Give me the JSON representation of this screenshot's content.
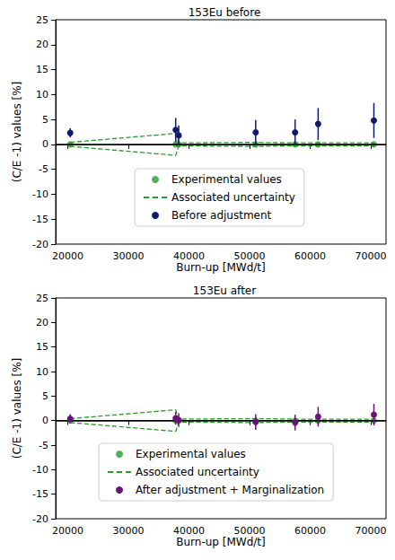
{
  "chart_data": [
    {
      "type": "scatter",
      "title": "153Eu before",
      "x_label": "Burn-up [MWd/t]",
      "y_label": "(C/E -1) values [%]",
      "x": [
        20400,
        37800,
        38300,
        51000,
        57500,
        61300,
        70500
      ],
      "xlim": [
        18000,
        72500
      ],
      "xticks": [
        20000,
        30000,
        40000,
        50000,
        60000,
        70000
      ],
      "ylim": [
        -20,
        25
      ],
      "yticks": [
        -20,
        -15,
        -10,
        -5,
        0,
        5,
        10,
        15,
        20,
        25
      ],
      "hline": 0,
      "grid": false,
      "series": [
        {
          "name": "Experimental values",
          "type": "scatter",
          "marker": "circle",
          "color": "#2a9a2a",
          "values": [
            0,
            0,
            0,
            0,
            0,
            0,
            0
          ]
        },
        {
          "name": "Associated uncertainty",
          "type": "line",
          "line_style": "dashed",
          "color": "#2a9a2a",
          "values": [
            0,
            0,
            0,
            0,
            0,
            0,
            0
          ],
          "errors": [
            0.4,
            2.2,
            0.3,
            0.4,
            0.3,
            0.3,
            0.3
          ]
        },
        {
          "name": "Before adjustment",
          "type": "errorbar",
          "marker": "circle",
          "color": "#0d1a6e",
          "values": [
            2.3,
            2.9,
            1.8,
            2.4,
            2.4,
            4.1,
            4.8
          ],
          "errors": [
            0.9,
            2.4,
            2.0,
            2.5,
            2.6,
            3.2,
            3.5
          ]
        }
      ]
    },
    {
      "type": "scatter",
      "title": "153Eu after",
      "x_label": "Burn-up [MWd/t]",
      "y_label": "(C/E -1) values [%]",
      "x": [
        20400,
        37800,
        38300,
        51000,
        57500,
        61300,
        70500
      ],
      "xlim": [
        18000,
        72500
      ],
      "xticks": [
        20000,
        30000,
        40000,
        50000,
        60000,
        70000
      ],
      "ylim": [
        -20,
        25
      ],
      "yticks": [
        -20,
        -15,
        -10,
        -5,
        0,
        5,
        10,
        15,
        20,
        25
      ],
      "hline": 0,
      "grid": false,
      "series": [
        {
          "name": "Experimental values",
          "type": "scatter",
          "marker": "circle",
          "color": "#2a9a2a",
          "values": [
            0,
            0,
            0,
            0,
            0,
            0,
            0
          ]
        },
        {
          "name": "Associated uncertainty",
          "type": "line",
          "line_style": "dashed",
          "color": "#2a9a2a",
          "values": [
            0,
            0,
            0,
            0,
            0,
            0,
            0
          ],
          "errors": [
            0.4,
            2.2,
            0.3,
            0.4,
            0.3,
            0.3,
            0.3
          ]
        },
        {
          "name": "After adjustment + Marginalization",
          "type": "errorbar",
          "marker": "circle",
          "color": "#6a117a",
          "values": [
            0.4,
            0.5,
            0.1,
            -0.3,
            -0.4,
            0.8,
            1.2
          ],
          "errors": [
            0.9,
            1.3,
            1.4,
            1.6,
            1.6,
            2.0,
            2.2
          ]
        }
      ]
    }
  ]
}
